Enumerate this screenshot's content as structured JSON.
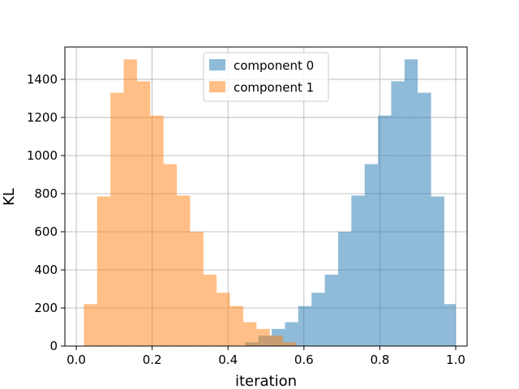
{
  "chart_data": {
    "type": "bar",
    "xlabel": "iteration",
    "ylabel": "KL",
    "xlim": [
      -0.03,
      1.03
    ],
    "ylim": [
      0,
      1570
    ],
    "x_ticks": [
      0.0,
      0.2,
      0.4,
      0.6,
      0.8,
      1.0
    ],
    "x_tick_labels": [
      "0.0",
      "0.2",
      "0.4",
      "0.6",
      "0.8",
      "1.0"
    ],
    "y_ticks": [
      0,
      200,
      400,
      600,
      800,
      1000,
      1200,
      1400
    ],
    "y_tick_labels": [
      "0",
      "200",
      "400",
      "600",
      "800",
      "1000",
      "1200",
      "1400"
    ],
    "grid": true,
    "legend_position": "top-center",
    "series": [
      {
        "name": "component 0",
        "color": "#1f77b4",
        "alpha": 0.5,
        "bins": [
          [
            0.445,
            0.48,
            20
          ],
          [
            0.48,
            0.515,
            55
          ],
          [
            0.515,
            0.55,
            90
          ],
          [
            0.55,
            0.585,
            125
          ],
          [
            0.585,
            0.62,
            210
          ],
          [
            0.62,
            0.655,
            280
          ],
          [
            0.655,
            0.69,
            375
          ],
          [
            0.69,
            0.725,
            600
          ],
          [
            0.725,
            0.76,
            790
          ],
          [
            0.76,
            0.795,
            955
          ],
          [
            0.795,
            0.83,
            1210
          ],
          [
            0.83,
            0.865,
            1390
          ],
          [
            0.865,
            0.9,
            1505
          ],
          [
            0.9,
            0.935,
            1330
          ],
          [
            0.935,
            0.97,
            785
          ],
          [
            0.97,
            1.0,
            220
          ]
        ]
      },
      {
        "name": "component 1",
        "color": "#ff7f0e",
        "alpha": 0.5,
        "bins": [
          [
            0.02,
            0.055,
            220
          ],
          [
            0.055,
            0.09,
            785
          ],
          [
            0.09,
            0.125,
            1330
          ],
          [
            0.125,
            0.16,
            1505
          ],
          [
            0.16,
            0.195,
            1390
          ],
          [
            0.195,
            0.23,
            1210
          ],
          [
            0.23,
            0.265,
            955
          ],
          [
            0.265,
            0.3,
            790
          ],
          [
            0.3,
            0.335,
            600
          ],
          [
            0.335,
            0.37,
            375
          ],
          [
            0.37,
            0.405,
            280
          ],
          [
            0.405,
            0.44,
            210
          ],
          [
            0.44,
            0.475,
            125
          ],
          [
            0.475,
            0.51,
            90
          ],
          [
            0.51,
            0.545,
            55
          ],
          [
            0.545,
            0.58,
            20
          ]
        ]
      }
    ]
  }
}
